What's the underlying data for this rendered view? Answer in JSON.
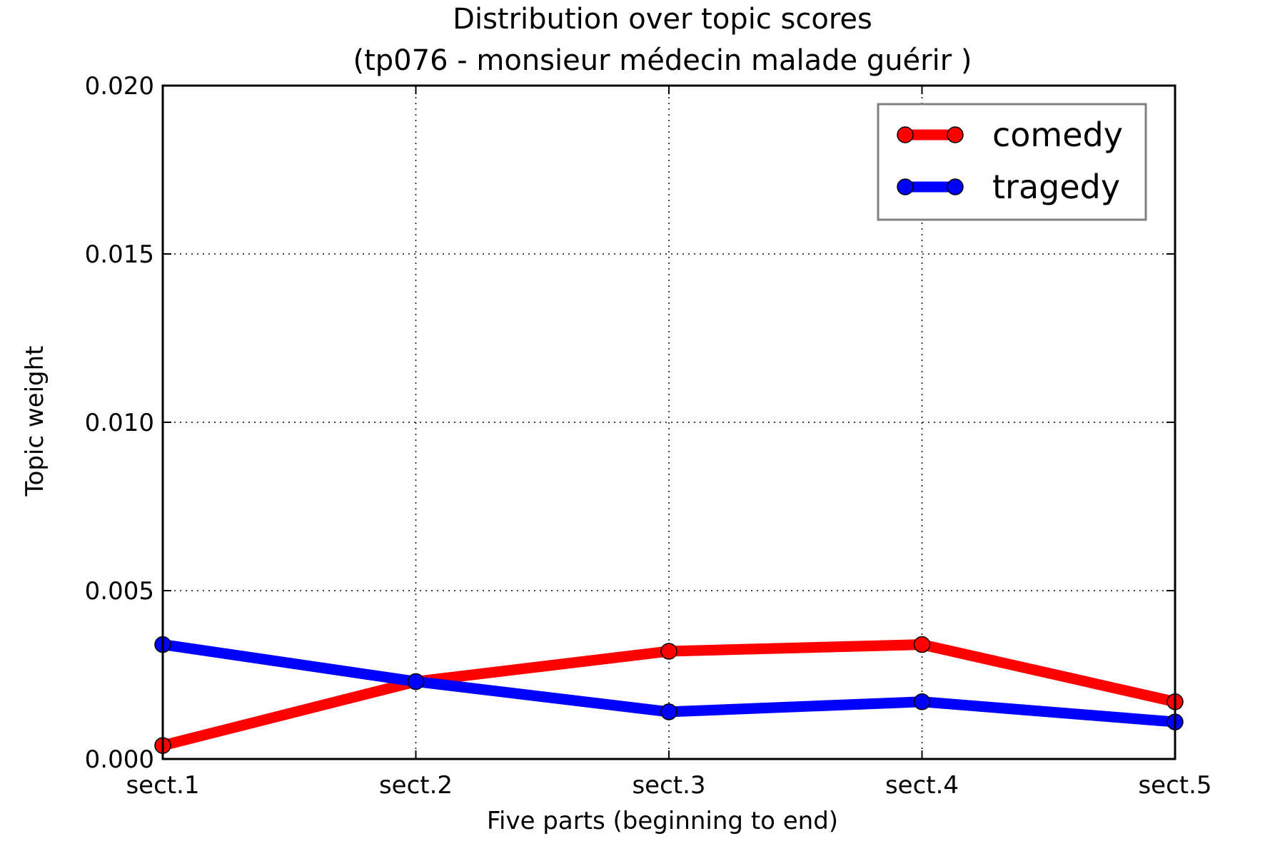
{
  "chart_data": {
    "type": "line",
    "title": "Distribution over topic scores",
    "subtitle": "(tp076 - monsieur médecin malade guérir )",
    "xlabel": "Five parts (beginning to end)",
    "ylabel": "Topic weight",
    "categories": [
      "sect.1",
      "sect.2",
      "sect.3",
      "sect.4",
      "sect.5"
    ],
    "ylim": [
      0,
      0.02
    ],
    "yticks": [
      "0.000",
      "0.005",
      "0.010",
      "0.015",
      "0.020"
    ],
    "grid": true,
    "legend_position": "top-right",
    "series": [
      {
        "name": "comedy",
        "color": "#ff0000",
        "values": [
          0.0004,
          0.0023,
          0.0032,
          0.0034,
          0.0017
        ]
      },
      {
        "name": "tragedy",
        "color": "#0000ff",
        "values": [
          0.0034,
          0.0023,
          0.0014,
          0.0017,
          0.0011
        ]
      }
    ]
  }
}
